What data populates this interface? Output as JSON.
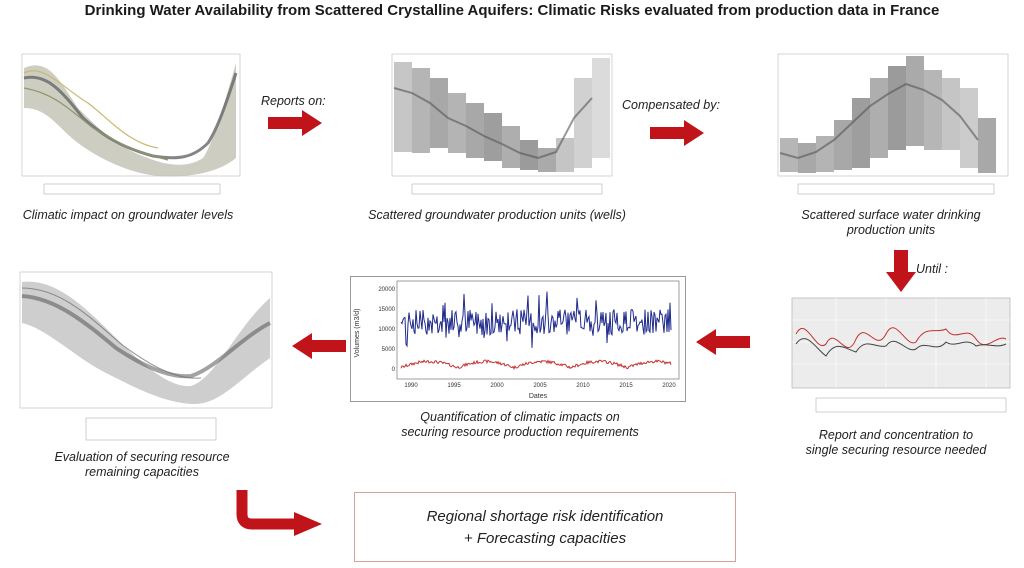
{
  "title": "Drinking Water Availability from Scattered Crystalline Aquifers: Climatic Risks evaluated from production data in France",
  "captions": {
    "groundwater_levels": "Climatic impact on groundwater levels",
    "wells": "Scattered groundwater production units (wells)",
    "surface_line1": "Scattered surface water drinking",
    "surface_line2": "production units",
    "report_line1": "Report and concentration to",
    "report_line2": "single securing resource needed",
    "quant_line1": "Quantification of climatic impacts on",
    "quant_line2": "securing resource production requirements",
    "eval_line1": "Evaluation of securing resource",
    "eval_line2": "remaining capacities"
  },
  "arrow_labels": {
    "reports_on": "Reports on:",
    "compensated_by": "Compensated by:",
    "until": "Until :"
  },
  "result": {
    "line1": "Regional shortage risk identification",
    "line2": "+ Forecasting capacities"
  },
  "quant_chart": {
    "y_ticks": [
      "20000",
      "15000",
      "10000",
      "5000",
      "0"
    ],
    "x_ticks": [
      "1990",
      "1995",
      "2000",
      "2005",
      "2010",
      "2015",
      "2020"
    ],
    "xlabel": "Dates",
    "ylabel": "Volumes (m3/d)"
  },
  "colors": {
    "arrow_red": "#c0141a",
    "box_border": "#d9a0a0",
    "series_blue": "#1f2a8c",
    "series_red": "#c43030"
  }
}
